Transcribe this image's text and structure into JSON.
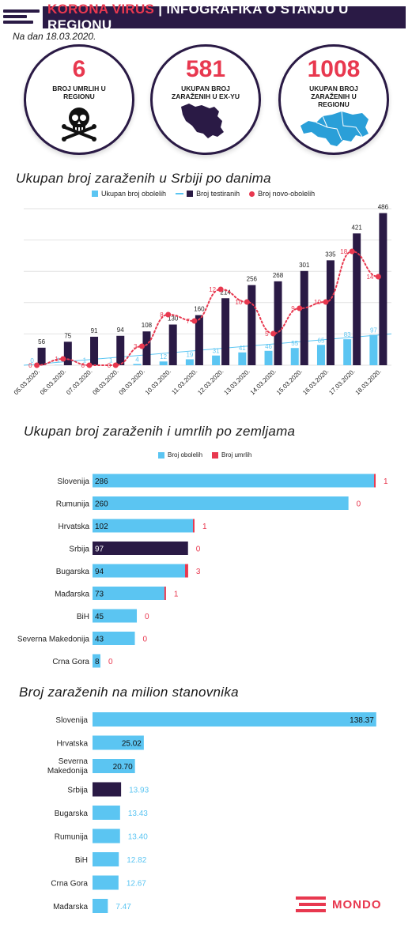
{
  "header": {
    "title_red": "KORONA VIRUS",
    "title_white": "| INFOGRAFIKA O STANJU U REGIONU",
    "date": "Na dan 18.03.2020."
  },
  "stats": [
    {
      "value": "6",
      "label": "BROJ UMRLIH U REGIONU",
      "icon": "skull-icon"
    },
    {
      "value": "581",
      "label": "UKUPAN BROJ ZARAŽENIH U EX-YU",
      "icon": "ex-yu-map-icon"
    },
    {
      "value": "1008",
      "label": "UKUPAN BROJ ZARAŽENIH U REGIONU",
      "icon": "region-map-icon"
    }
  ],
  "colors": {
    "accent": "#e8384f",
    "navy": "#2a1a45",
    "light_blue": "#5bc5f2"
  },
  "chart_data": [
    {
      "type": "bar",
      "title": "Ukupan broj zaraženih u Srbiji po danima",
      "categories": [
        "05.03.2020.",
        "06.03.2020.",
        "07.03.2020.",
        "08.03.2020.",
        "09.03.2020.",
        "10.03.2020.",
        "11.03.2020.",
        "12.03.2020.",
        "13.03.2020.",
        "14.03.2020.",
        "15.03.2020.",
        "16.03.2020.",
        "17.03.2020.",
        "18.03.2020."
      ],
      "legend_position": "top",
      "ylim": [
        0,
        500
      ],
      "grid": true,
      "series": [
        {
          "name": "Ukupan broj obolelih",
          "kind": "bar",
          "color": "#5bc5f2",
          "values": [
            0,
            1,
            1,
            1,
            4,
            12,
            19,
            31,
            41,
            46,
            55,
            65,
            83,
            97
          ]
        },
        {
          "name": "Broj testiranih",
          "kind": "bar",
          "color": "#2a1a45",
          "values": [
            56,
            75,
            91,
            94,
            108,
            130,
            160,
            214,
            256,
            268,
            301,
            335,
            421,
            486
          ]
        },
        {
          "name": "Broj novo-obolelih",
          "kind": "dots",
          "color": "#e8384f",
          "values": [
            0,
            1,
            0,
            0,
            3,
            8,
            7,
            12,
            10,
            5,
            9,
            10,
            18,
            14
          ]
        }
      ]
    },
    {
      "type": "bar",
      "orientation": "horizontal",
      "title": "Ukupan broj zaraženih i umrlih po zemljama",
      "legend_position": "top",
      "xlim": [
        0,
        290
      ],
      "categories": [
        "Slovenija",
        "Rumunija",
        "Hrvatska",
        "Srbija",
        "Bugarska",
        "Mađarska",
        "BiH",
        "Severna Makedonija",
        "Crna Gora"
      ],
      "series": [
        {
          "name": "Broj obolelih",
          "color": "#5bc5f2",
          "values": [
            286,
            260,
            102,
            97,
            94,
            73,
            45,
            43,
            8
          ]
        },
        {
          "name": "Broj umrlih",
          "color": "#e8384f",
          "values": [
            1,
            0,
            1,
            0,
            3,
            1,
            0,
            0,
            0
          ]
        }
      ],
      "highlight": "Srbija"
    },
    {
      "type": "bar",
      "orientation": "horizontal",
      "title": "Broj zaraženih na milion stanovnika",
      "xlim": [
        0,
        140
      ],
      "categories": [
        "Slovenija",
        "Hrvatska",
        "Severna Makedonija",
        "Srbija",
        "Bugarska",
        "Rumunija",
        "BiH",
        "Crna Gora",
        "Mađarska"
      ],
      "category_lines": [
        [
          "Slovenija"
        ],
        [
          "Hrvatska"
        ],
        [
          "Severna",
          "Makedonija"
        ],
        [
          "Srbija"
        ],
        [
          "Bugarska"
        ],
        [
          "Rumunija"
        ],
        [
          "BiH"
        ],
        [
          "Crna Gora"
        ],
        [
          "Mađarska"
        ]
      ],
      "values": [
        138.37,
        25.02,
        20.7,
        13.93,
        13.43,
        13.4,
        12.82,
        12.67,
        7.47
      ],
      "value_labels": [
        "138.37",
        "25.02",
        "20.70",
        "13.93",
        "13.43",
        "13.40",
        "12.82",
        "12.67",
        "7.47"
      ],
      "highlight": "Srbija"
    }
  ],
  "brand": {
    "name": "MONDO"
  }
}
